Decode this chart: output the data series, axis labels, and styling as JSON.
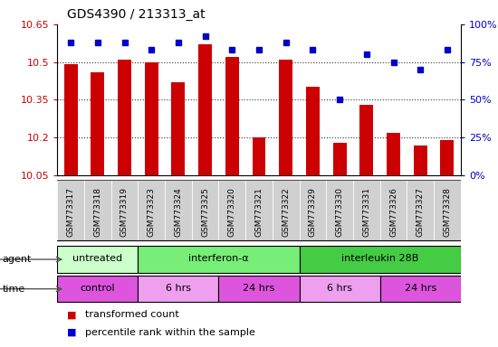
{
  "title": "GDS4390 / 213313_at",
  "samples": [
    "GSM773317",
    "GSM773318",
    "GSM773319",
    "GSM773323",
    "GSM773324",
    "GSM773325",
    "GSM773320",
    "GSM773321",
    "GSM773322",
    "GSM773329",
    "GSM773330",
    "GSM773331",
    "GSM773326",
    "GSM773327",
    "GSM773328"
  ],
  "red_values": [
    10.49,
    10.46,
    10.51,
    10.5,
    10.42,
    10.57,
    10.52,
    10.2,
    10.51,
    10.4,
    10.18,
    10.33,
    10.22,
    10.17,
    10.19
  ],
  "blue_values": [
    88,
    88,
    88,
    83,
    88,
    92,
    83,
    83,
    88,
    83,
    50,
    80,
    75,
    70,
    83
  ],
  "ylim_left": [
    10.05,
    10.65
  ],
  "ylim_right": [
    0,
    100
  ],
  "yticks_left": [
    10.05,
    10.2,
    10.35,
    10.5,
    10.65
  ],
  "ytick_labels_left": [
    "10.05",
    "10.2",
    "10.35",
    "10.5",
    "10.65"
  ],
  "yticks_right": [
    0,
    25,
    50,
    75,
    100
  ],
  "ytick_labels_right": [
    "0%",
    "25%",
    "50%",
    "75%",
    "100%"
  ],
  "red_color": "#cc0000",
  "blue_color": "#0000cc",
  "bar_width": 0.5,
  "chart_bg": "#ffffff",
  "x_label_bg": "#d0d0d0",
  "agent_groups": [
    {
      "label": "untreated",
      "start": 0,
      "end": 3,
      "color": "#ccffcc"
    },
    {
      "label": "interferon-α",
      "start": 3,
      "end": 9,
      "color": "#77ee77"
    },
    {
      "label": "interleukin 28B",
      "start": 9,
      "end": 15,
      "color": "#44cc44"
    }
  ],
  "time_groups": [
    {
      "label": "control",
      "start": 0,
      "end": 3,
      "color": "#dd55dd"
    },
    {
      "label": "6 hrs",
      "start": 3,
      "end": 6,
      "color": "#eea0ee"
    },
    {
      "label": "24 hrs",
      "start": 6,
      "end": 9,
      "color": "#dd55dd"
    },
    {
      "label": "6 hrs",
      "start": 9,
      "end": 12,
      "color": "#eea0ee"
    },
    {
      "label": "24 hrs",
      "start": 12,
      "end": 15,
      "color": "#dd55dd"
    }
  ],
  "legend_red": "transformed count",
  "legend_blue": "percentile rank within the sample",
  "grid_color": "#333333",
  "dotted_lines": [
    10.2,
    10.35,
    10.5
  ]
}
